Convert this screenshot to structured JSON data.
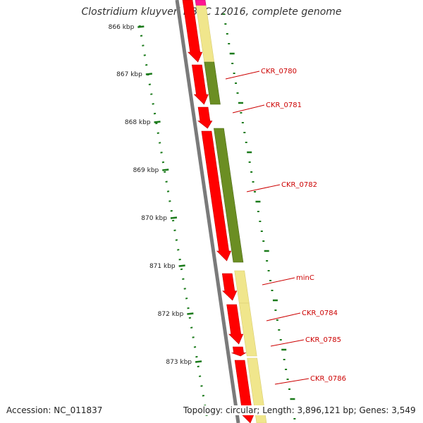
{
  "title": "Clostridium kluyveri NBRC 12016, complete genome",
  "ruler_ticks": [
    "866 kbp",
    "867 kbp",
    "868 kbp",
    "869 kbp",
    "870 kbp",
    "871 kbp",
    "872 kbp",
    "873 kbp"
  ],
  "gene_labels": [
    "CKR_0780",
    "CKR_0781",
    "CKR_0782",
    "minC",
    "CKR_0784",
    "CKR_0785",
    "CKR_0786"
  ],
  "accession": "Accession: NC_011837",
  "footer_info": "Topology: circular; Length: 3,896,121 bp; Genes: 3,549",
  "colors": {
    "backbone": "#7a7a7a",
    "gene_red": "#ff0000",
    "cog_green": "#6b8e23",
    "cog_yellow": "#f0e68c",
    "cog_pink": "#ff1493",
    "ruler": "#1a7a1a",
    "label": "#cc0000"
  }
}
